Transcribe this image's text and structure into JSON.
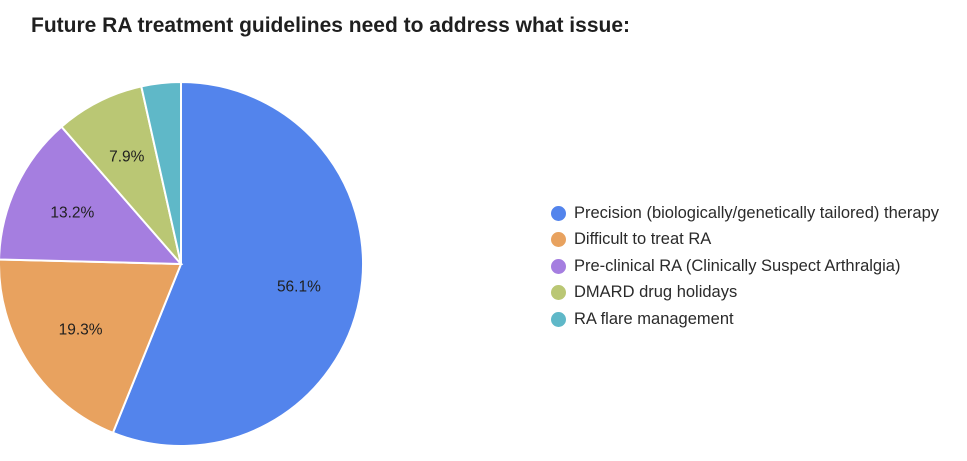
{
  "chart_data": {
    "type": "pie",
    "title": "Future RA treatment guidelines need to address what issue:",
    "legend_position": "right",
    "slices": [
      {
        "label": "Precision (biologically/genetically tailored) therapy",
        "value": 56.1,
        "value_label": "56.1%",
        "color": "#5384ec"
      },
      {
        "label": "Difficult to treat RA",
        "value": 19.3,
        "value_label": "19.3%",
        "color": "#e8a25f"
      },
      {
        "label": "Pre-clinical RA (Clinically Suspect Arthralgia)",
        "value": 13.2,
        "value_label": "13.2%",
        "color": "#a57ee0"
      },
      {
        "label": "DMARD drug holidays",
        "value": 7.9,
        "value_label": "7.9%",
        "color": "#bac774"
      },
      {
        "label": "RA flare management",
        "value": 3.5,
        "value_label": "",
        "color": "#5fb8c8"
      }
    ]
  }
}
